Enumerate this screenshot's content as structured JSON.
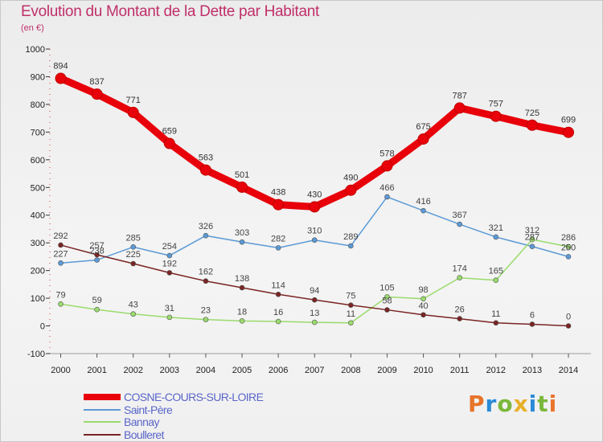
{
  "title": "Evolution du Montant de la Dette par Habitant",
  "subtitle": "(en €)",
  "logo": {
    "text": "Proxiti",
    "colors": [
      "#e8732a",
      "#2a8ad8",
      "#7ab83a",
      "#e8b02a",
      "#2a8ad8",
      "#7ab83a",
      "#e8732a"
    ]
  },
  "chart_data": {
    "type": "line",
    "x": [
      "2000",
      "2001",
      "2002",
      "2003",
      "2004",
      "2005",
      "2006",
      "2007",
      "2008",
      "2009",
      "2010",
      "2011",
      "2012",
      "2013",
      "2014"
    ],
    "ylim": [
      -100,
      1000
    ],
    "yticks": [
      -100,
      0,
      100,
      200,
      300,
      400,
      500,
      600,
      700,
      800,
      900,
      1000
    ],
    "grid": false,
    "legend_position": "bottom-left",
    "series": [
      {
        "name": "COSNE-COURS-SUR-LOIRE",
        "color": "#e8000a",
        "width": 9,
        "values": [
          894,
          837,
          771,
          659,
          563,
          501,
          438,
          430,
          490,
          578,
          675,
          787,
          757,
          725,
          699
        ]
      },
      {
        "name": "Saint-Père",
        "color": "#5b9ad6",
        "width": 1.5,
        "values": [
          227,
          238,
          285,
          254,
          326,
          303,
          282,
          310,
          289,
          466,
          416,
          367,
          321,
          287,
          250
        ]
      },
      {
        "name": "Bannay",
        "color": "#9adb6c",
        "width": 1.5,
        "values": [
          79,
          59,
          43,
          31,
          23,
          18,
          16,
          13,
          11,
          105,
          98,
          174,
          165,
          312,
          286
        ]
      },
      {
        "name": "Boulleret",
        "color": "#7a2424",
        "width": 1.5,
        "values": [
          292,
          257,
          225,
          192,
          162,
          138,
          114,
          94,
          75,
          58,
          40,
          26,
          11,
          6,
          0
        ]
      }
    ]
  }
}
